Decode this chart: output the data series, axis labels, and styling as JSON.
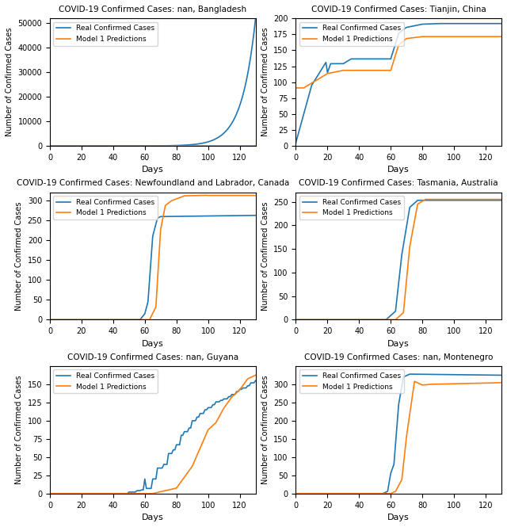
{
  "subplots": [
    {
      "title": "COVID-19 Confirmed Cases: nan, Bangladesh",
      "xlim": [
        0,
        130
      ],
      "ylim": [
        0,
        52000
      ],
      "yticks": [
        0,
        10000,
        20000,
        30000,
        40000,
        50000
      ],
      "xticks": [
        0,
        20,
        40,
        60,
        80,
        100,
        120
      ]
    },
    {
      "title": "COVID-19 Confirmed Cases: Tianjin, China",
      "xlim": [
        0,
        130
      ],
      "ylim": [
        0,
        200
      ],
      "yticks": [
        0,
        25,
        50,
        75,
        100,
        125,
        150,
        175,
        200
      ],
      "xticks": [
        0,
        20,
        40,
        60,
        80,
        100,
        120
      ]
    },
    {
      "title": "COVID-19 Confirmed Cases: Newfoundland and Labrador, Canada",
      "xlim": [
        0,
        130
      ],
      "ylim": [
        0,
        320
      ],
      "yticks": [
        0,
        50,
        100,
        150,
        200,
        250,
        300
      ],
      "xticks": [
        0,
        20,
        40,
        60,
        80,
        100,
        120
      ]
    },
    {
      "title": "COVID-19 Confirmed Cases: Tasmania, Australia",
      "xlim": [
        0,
        130
      ],
      "ylim": [
        0,
        270
      ],
      "yticks": [
        0,
        50,
        100,
        150,
        200,
        250
      ],
      "xticks": [
        0,
        20,
        40,
        60,
        80,
        100,
        120
      ]
    },
    {
      "title": "COVID-19 Confirmed Cases: nan, Guyana",
      "xlim": [
        0,
        130
      ],
      "ylim": [
        0,
        175
      ],
      "yticks": [
        0,
        25,
        50,
        75,
        100,
        125,
        150
      ],
      "xticks": [
        0,
        20,
        40,
        60,
        80,
        100,
        120
      ]
    },
    {
      "title": "COVID-19 Confirmed Cases: nan, Montenegro",
      "xlim": [
        0,
        130
      ],
      "ylim": [
        0,
        350
      ],
      "yticks": [
        0,
        50,
        100,
        150,
        200,
        250,
        300
      ],
      "xticks": [
        0,
        20,
        40,
        60,
        80,
        100,
        120
      ]
    }
  ],
  "real_color": "#1f77b4",
  "pred_color": "#ff7f0e",
  "xlabel": "Days",
  "ylabel": "Number of Confirmed Cases",
  "real_label": "Real Confirmed Cases",
  "pred_label": "Model 1 Predictions",
  "figsize": [
    6.4,
    6.65
  ],
  "dpi": 100
}
